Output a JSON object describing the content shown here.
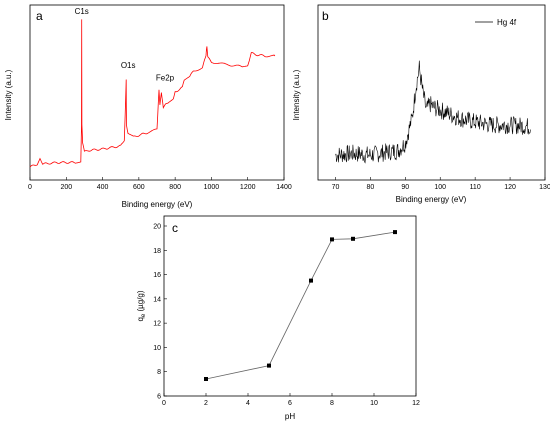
{
  "chart_data": [
    {
      "panel": "a",
      "type": "line",
      "xlabel": "Binding energy (eV)",
      "ylabel": "Intensity (a.u.)",
      "xlim": [
        0,
        1400
      ],
      "xticks": [
        "0",
        "200",
        "400",
        "600",
        "800",
        "1000",
        "1200",
        "1400"
      ],
      "y_ticks_shown": false,
      "color": "#ff0000",
      "annotations": [
        {
          "text": "C1s",
          "x": 285
        },
        {
          "text": "O1s",
          "x": 530
        },
        {
          "text": "Fe2p",
          "x": 711
        }
      ],
      "series": [
        {
          "x": [
            0,
            40,
            55,
            70,
            150,
            250,
            280,
            284,
            285,
            286,
            290,
            300,
            320,
            400,
            500,
            520,
            529,
            530,
            532,
            540,
            570,
            650,
            700,
            711,
            716,
            724,
            735,
            760,
            790,
            800,
            840,
            850,
            880,
            900,
            950,
            970,
            975,
            980,
            1000,
            1050,
            1100,
            1170,
            1200,
            1220,
            1240,
            1300,
            1350
          ],
          "y": [
            0.02,
            0.04,
            0.08,
            0.04,
            0.05,
            0.05,
            0.06,
            0.3,
            1.0,
            0.3,
            0.18,
            0.12,
            0.13,
            0.14,
            0.16,
            0.2,
            0.55,
            0.6,
            0.3,
            0.24,
            0.22,
            0.25,
            0.27,
            0.53,
            0.44,
            0.52,
            0.42,
            0.45,
            0.48,
            0.52,
            0.55,
            0.6,
            0.62,
            0.66,
            0.68,
            0.76,
            0.83,
            0.75,
            0.72,
            0.71,
            0.7,
            0.69,
            0.7,
            0.78,
            0.77,
            0.76,
            0.76
          ]
        }
      ]
    },
    {
      "panel": "b",
      "type": "line",
      "xlabel": "Binding energy (eV)",
      "ylabel": "Intensity (a.u.)",
      "xlim": [
        65,
        130
      ],
      "xticks": [
        "70",
        "80",
        "90",
        "100",
        "110",
        "120",
        "130"
      ],
      "y_ticks_shown": false,
      "color": "#000000",
      "legend": {
        "entries": [
          "Hg 4f"
        ],
        "placement": "top-right"
      },
      "series": [
        {
          "name": "Hg 4f",
          "x": [
            70,
            75,
            80,
            85,
            88,
            90,
            92,
            93,
            94,
            95,
            96,
            97,
            98,
            100,
            102,
            105,
            108,
            110,
            115,
            120,
            126
          ],
          "y": [
            0.1,
            0.11,
            0.1,
            0.12,
            0.13,
            0.18,
            0.35,
            0.55,
            0.68,
            0.52,
            0.4,
            0.44,
            0.42,
            0.4,
            0.38,
            0.35,
            0.33,
            0.32,
            0.3,
            0.3,
            0.29
          ]
        }
      ]
    },
    {
      "panel": "c",
      "type": "line",
      "xlabel": "pH",
      "ylabel": "q",
      "ylabel_sub": "e",
      "ylabel_unit": "(µg/g)",
      "xlim": [
        0,
        12
      ],
      "ylim": [
        6,
        20
      ],
      "xticks": [
        "0",
        "2",
        "4",
        "6",
        "8",
        "10",
        "12"
      ],
      "yticks": [
        "6",
        "8",
        "10",
        "12",
        "14",
        "16",
        "18",
        "20"
      ],
      "color": "#000000",
      "marker": "square",
      "series": [
        {
          "x": [
            2,
            5,
            7,
            8,
            9,
            11
          ],
          "y": [
            7.4,
            8.5,
            15.5,
            18.9,
            18.95,
            19.5
          ]
        }
      ]
    }
  ]
}
